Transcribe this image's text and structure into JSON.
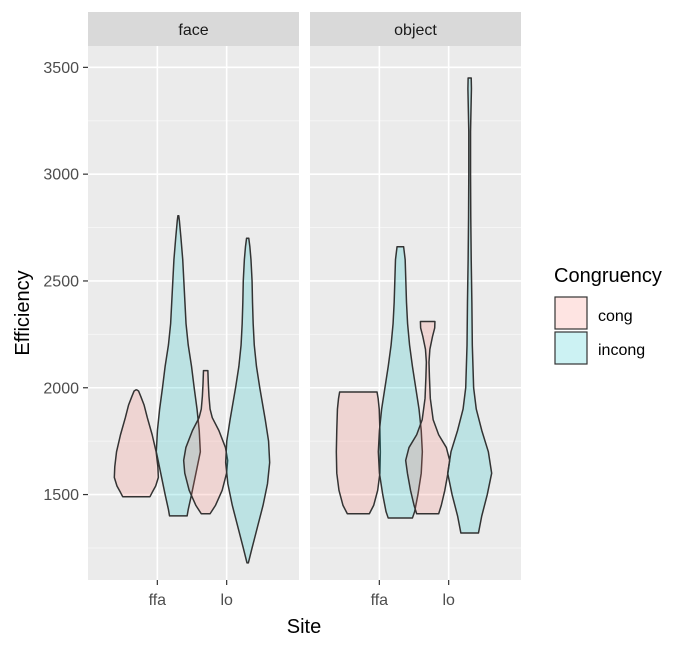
{
  "chart_data": {
    "type": "violin",
    "xlabel": "Site",
    "ylabel": "Efficiency",
    "ylim": [
      1100,
      3600
    ],
    "yticks": [
      1500,
      2000,
      2500,
      3000,
      3500
    ],
    "categories": [
      "ffa",
      "lo"
    ],
    "legend": {
      "title": "Congruency",
      "position": "right",
      "entries": [
        {
          "label": "cong",
          "color": "#F8766D"
        },
        {
          "label": "incong",
          "color": "#00BFC4"
        }
      ]
    },
    "facets": [
      {
        "label": "face",
        "violins": [
          {
            "category": "ffa",
            "group": "cong",
            "profile": [
              [
                1490,
                0.62
              ],
              [
                1510,
                0.72
              ],
              [
                1540,
                0.88
              ],
              [
                1580,
                1.0
              ],
              [
                1630,
                0.98
              ],
              [
                1700,
                0.9
              ],
              [
                1780,
                0.72
              ],
              [
                1860,
                0.5
              ],
              [
                1920,
                0.35
              ],
              [
                1960,
                0.2
              ],
              [
                1985,
                0.1
              ],
              [
                1990,
                0.02
              ]
            ]
          },
          {
            "category": "ffa",
            "group": "incong",
            "profile": [
              [
                1400,
                0.4
              ],
              [
                1430,
                0.45
              ],
              [
                1500,
                0.6
              ],
              [
                1600,
                0.8
              ],
              [
                1700,
                1.0
              ],
              [
                1800,
                0.95
              ],
              [
                1900,
                0.85
              ],
              [
                2000,
                0.72
              ],
              [
                2100,
                0.6
              ],
              [
                2200,
                0.45
              ],
              [
                2300,
                0.35
              ],
              [
                2400,
                0.3
              ],
              [
                2500,
                0.25
              ],
              [
                2600,
                0.2
              ],
              [
                2700,
                0.12
              ],
              [
                2780,
                0.05
              ],
              [
                2805,
                0.02
              ]
            ]
          },
          {
            "category": "lo",
            "group": "cong",
            "profile": [
              [
                1410,
                0.2
              ],
              [
                1450,
                0.45
              ],
              [
                1520,
                0.75
              ],
              [
                1600,
                0.95
              ],
              [
                1660,
                1.0
              ],
              [
                1720,
                0.9
              ],
              [
                1800,
                0.6
              ],
              [
                1860,
                0.3
              ],
              [
                1900,
                0.2
              ],
              [
                1960,
                0.15
              ],
              [
                2020,
                0.12
              ],
              [
                2080,
                0.1
              ]
            ]
          },
          {
            "category": "lo",
            "group": "incong",
            "profile": [
              [
                1180,
                0.03
              ],
              [
                1250,
                0.2
              ],
              [
                1350,
                0.45
              ],
              [
                1450,
                0.7
              ],
              [
                1550,
                0.9
              ],
              [
                1650,
                1.0
              ],
              [
                1750,
                0.95
              ],
              [
                1850,
                0.8
              ],
              [
                2000,
                0.55
              ],
              [
                2100,
                0.4
              ],
              [
                2200,
                0.3
              ],
              [
                2300,
                0.25
              ],
              [
                2400,
                0.22
              ],
              [
                2500,
                0.2
              ],
              [
                2600,
                0.15
              ],
              [
                2660,
                0.1
              ],
              [
                2700,
                0.05
              ]
            ]
          }
        ]
      },
      {
        "label": "object",
        "violins": [
          {
            "category": "ffa",
            "group": "cong",
            "profile": [
              [
                1410,
                0.5
              ],
              [
                1450,
                0.7
              ],
              [
                1520,
                0.88
              ],
              [
                1600,
                0.98
              ],
              [
                1700,
                1.0
              ],
              [
                1800,
                0.98
              ],
              [
                1900,
                0.95
              ],
              [
                1950,
                0.9
              ],
              [
                1980,
                0.85
              ]
            ]
          },
          {
            "category": "ffa",
            "group": "incong",
            "profile": [
              [
                1390,
                0.55
              ],
              [
                1420,
                0.65
              ],
              [
                1500,
                0.8
              ],
              [
                1600,
                0.95
              ],
              [
                1700,
                1.0
              ],
              [
                1800,
                0.95
              ],
              [
                1900,
                0.85
              ],
              [
                2000,
                0.7
              ],
              [
                2100,
                0.55
              ],
              [
                2200,
                0.42
              ],
              [
                2300,
                0.33
              ],
              [
                2400,
                0.28
              ],
              [
                2500,
                0.25
              ],
              [
                2600,
                0.22
              ],
              [
                2660,
                0.15
              ]
            ]
          },
          {
            "category": "lo",
            "group": "cong",
            "profile": [
              [
                1410,
                0.5
              ],
              [
                1450,
                0.62
              ],
              [
                1520,
                0.78
              ],
              [
                1600,
                0.92
              ],
              [
                1660,
                1.0
              ],
              [
                1720,
                0.85
              ],
              [
                1780,
                0.5
              ],
              [
                1850,
                0.25
              ],
              [
                1950,
                0.12
              ],
              [
                2050,
                0.08
              ],
              [
                2120,
                0.06
              ],
              [
                2180,
                0.1
              ],
              [
                2240,
                0.22
              ],
              [
                2280,
                0.32
              ],
              [
                2310,
                0.33
              ]
            ]
          },
          {
            "category": "lo",
            "group": "incong",
            "profile": [
              [
                1320,
                0.4
              ],
              [
                1400,
                0.55
              ],
              [
                1500,
                0.8
              ],
              [
                1600,
                1.0
              ],
              [
                1700,
                0.85
              ],
              [
                1800,
                0.55
              ],
              [
                1900,
                0.3
              ],
              [
                2000,
                0.18
              ],
              [
                2200,
                0.12
              ],
              [
                2400,
                0.1
              ],
              [
                2600,
                0.07
              ],
              [
                2800,
                0.05
              ],
              [
                3000,
                0.04
              ],
              [
                3200,
                0.04
              ],
              [
                3300,
                0.06
              ],
              [
                3400,
                0.08
              ],
              [
                3450,
                0.07
              ]
            ]
          }
        ]
      }
    ]
  }
}
